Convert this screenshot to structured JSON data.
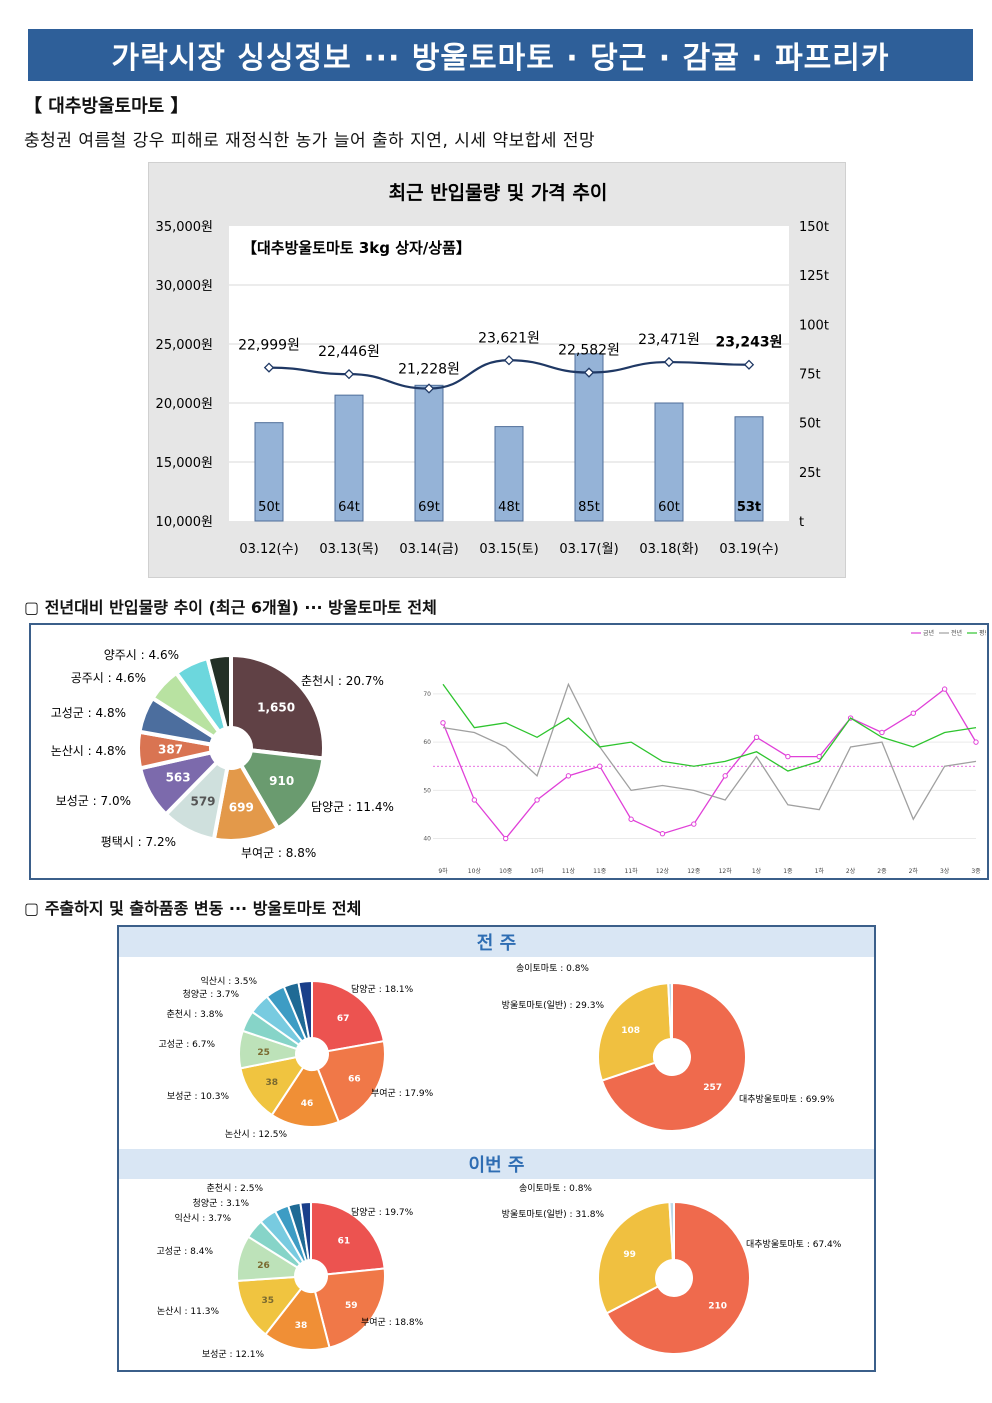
{
  "header": {
    "title": "가락시장 싱싱정보 ··· 방울토마토 · 당근 · 감귤 · 파프리카"
  },
  "section1": {
    "head": "【 대추방울토마토 】",
    "desc": "충청권 여름철 강우 피해로 재정식한 농가 늘어 출하 지연, 시세 약보합세 전망"
  },
  "subtitle2": "▢ 전년대비 반입물량 추이 (최근 6개월) ··· 방울토마토 전체",
  "subtitle3": "▢ 주출하지 및 출하품종 변동 ··· 방울토마토 전체",
  "week_prev_label": "전 주",
  "week_this_label": "이번 주",
  "colors": {
    "bar": "#95b3d7",
    "line": "#1f3864",
    "band": "#2e5f99"
  },
  "chart_data": [
    {
      "type": "bar+line",
      "title": "최근 반입물량 및 가격 추이",
      "inner_label": "【대추방울토마토 3kg 상자/상품】",
      "categories": [
        "03.12(수)",
        "03.13(목)",
        "03.14(금)",
        "03.15(토)",
        "03.17(월)",
        "03.18(화)",
        "03.19(수)"
      ],
      "price": [
        22999,
        22446,
        21228,
        23621,
        22582,
        23471,
        23243
      ],
      "price_labels": [
        "22,999원",
        "22,446원",
        "21,228원",
        "23,621원",
        "22,582원",
        "23,471원",
        "23,243원"
      ],
      "volume": [
        50,
        64,
        69,
        48,
        85,
        60,
        53
      ],
      "volume_labels": [
        "50t",
        "64t",
        "69t",
        "48t",
        "85t",
        "60t",
        "53t"
      ],
      "y_left_ticks": [
        "35,000원",
        "30,000원",
        "25,000원",
        "20,000원",
        "15,000원",
        "10,000원"
      ],
      "y_right_ticks": [
        "150t",
        "125t",
        "100t",
        "75t",
        "50t",
        "25t",
        "t"
      ],
      "ylim_left": [
        10000,
        35000
      ],
      "ylim_right": [
        0,
        150
      ]
    },
    {
      "type": "pie",
      "slices": [
        {
          "label": "춘천시 : 20.7%",
          "value": 1650,
          "value_label": "1,650",
          "color": "#604145"
        },
        {
          "label": "담양군 : 11.4%",
          "value": 910,
          "value_label": "910",
          "color": "#6a9b6f"
        },
        {
          "label": "부여군 : 8.8%",
          "value": 699,
          "value_label": "699",
          "color": "#e3994a"
        },
        {
          "label": "평택시 : 7.2%",
          "value": 579,
          "value_label": "579",
          "color": "#cfe0dd"
        },
        {
          "label": "보성군 : 7.0%",
          "value": 563,
          "value_label": "563",
          "color": "#7c6aac"
        },
        {
          "label": "논산시 : 4.8%",
          "value": 387,
          "value_label": "387",
          "color": "#d97452"
        },
        {
          "label": "고성군 : 4.8%",
          "value": 383,
          "value_label": "",
          "color": "#4c6e9e"
        },
        {
          "label": "공주시 : 4.6%",
          "value": 367,
          "value_label": "",
          "color": "#b8e2a1"
        },
        {
          "label": "양주시 : 4.6%",
          "value": 367,
          "value_label": "",
          "color": "#6cd7dd"
        },
        {
          "label": "",
          "value": 250,
          "value_label": "",
          "color": "#243026"
        }
      ]
    },
    {
      "type": "line",
      "legend": [
        "금년",
        "전년",
        "평년"
      ],
      "x": [
        "9하",
        "10상",
        "10중",
        "10하",
        "11상",
        "11중",
        "11하",
        "12상",
        "12중",
        "12하",
        "1상",
        "1중",
        "1하",
        "2상",
        "2중",
        "2하",
        "3상",
        "3중"
      ],
      "y_ticks": [
        "70",
        "60",
        "50",
        "40"
      ],
      "ylim": [
        37,
        76
      ],
      "series": [
        {
          "name": "금년",
          "color": "#e040d8",
          "values": [
            64,
            48,
            40,
            48,
            53,
            55,
            44,
            41,
            43,
            53,
            61,
            57,
            57,
            65,
            62,
            66,
            71,
            60
          ]
        },
        {
          "name": "전년",
          "color": "#a0a0a0",
          "values": [
            63,
            62,
            59,
            53,
            72,
            59,
            50,
            51,
            50,
            48,
            57,
            47,
            46,
            59,
            60,
            44,
            55,
            56
          ]
        },
        {
          "name": "평년",
          "color": "#2ec42e",
          "values": [
            72,
            63,
            64,
            61,
            65,
            59,
            60,
            56,
            55,
            56,
            58,
            54,
            56,
            65,
            61,
            59,
            62,
            63
          ]
        }
      ],
      "reference": 55
    },
    {
      "type": "pie",
      "week": "전 주",
      "slices": [
        {
          "label": "담양군 : 18.1%",
          "value": 67,
          "value_label": "67",
          "color": "#ec5350"
        },
        {
          "label": "부여군 : 17.9%",
          "value": 66,
          "value_label": "66",
          "color": "#f07848"
        },
        {
          "label": "논산시 : 12.5%",
          "value": 46,
          "value_label": "46",
          "color": "#f08f36"
        },
        {
          "label": "보성군 : 10.3%",
          "value": 38,
          "value_label": "38",
          "color": "#f0c440"
        },
        {
          "label": "고성군 : 6.7%",
          "value": 25,
          "value_label": "25",
          "color": "#bde2b9"
        },
        {
          "label": "춘천시 : 3.8%",
          "value": 14,
          "value_label": "",
          "color": "#86d4c8"
        },
        {
          "label": "청양군 : 3.7%",
          "value": 14,
          "value_label": "",
          "color": "#78cbe0"
        },
        {
          "label": "익산시 : 3.5%",
          "value": 13,
          "value_label": "",
          "color": "#3d9cc4"
        },
        {
          "label": "",
          "value": 10,
          "value_label": "",
          "color": "#1f6a95"
        },
        {
          "label": "",
          "value": 9,
          "value_label": "",
          "color": "#1a3f8a"
        }
      ]
    },
    {
      "type": "pie",
      "week": "전 주",
      "slices": [
        {
          "label": "대추방울토마토 : 69.9%",
          "value": 257,
          "value_label": "257",
          "color": "#ef6a4d"
        },
        {
          "label": "방울토마토(일반) : 29.3%",
          "value": 108,
          "value_label": "108",
          "color": "#f0c040"
        },
        {
          "label": "송이토마토 : 0.8%",
          "value": 3,
          "value_label": "",
          "color": "#bcd8e8"
        }
      ]
    },
    {
      "type": "pie",
      "week": "이번 주",
      "slices": [
        {
          "label": "담양군 : 19.7%",
          "value": 61,
          "value_label": "61",
          "color": "#ec5350"
        },
        {
          "label": "부여군 : 18.8%",
          "value": 59,
          "value_label": "59",
          "color": "#f07848"
        },
        {
          "label": "보성군 : 12.1%",
          "value": 38,
          "value_label": "38",
          "color": "#f08f36"
        },
        {
          "label": "논산시 : 11.3%",
          "value": 35,
          "value_label": "35",
          "color": "#f0c440"
        },
        {
          "label": "고성군 : 8.4%",
          "value": 26,
          "value_label": "26",
          "color": "#bde2b9"
        },
        {
          "label": "익산시 : 3.7%",
          "value": 11,
          "value_label": "",
          "color": "#86d4c8"
        },
        {
          "label": "청양군 : 3.1%",
          "value": 10,
          "value_label": "",
          "color": "#78cbe0"
        },
        {
          "label": "춘천시 : 2.5%",
          "value": 8,
          "value_label": "",
          "color": "#3d9cc4"
        },
        {
          "label": "",
          "value": 7,
          "value_label": "",
          "color": "#1f6a95"
        },
        {
          "label": "",
          "value": 6,
          "value_label": "",
          "color": "#1a3f8a"
        }
      ]
    },
    {
      "type": "pie",
      "week": "이번 주",
      "slices": [
        {
          "label": "대추방울토마토 : 67.4%",
          "value": 210,
          "value_label": "210",
          "color": "#ef6a4d"
        },
        {
          "label": "방울토마토(일반) : 31.8%",
          "value": 99,
          "value_label": "99",
          "color": "#f0c040"
        },
        {
          "label": "송이토마토 : 0.8%",
          "value": 3,
          "value_label": "",
          "color": "#bcd8e8"
        }
      ]
    }
  ]
}
